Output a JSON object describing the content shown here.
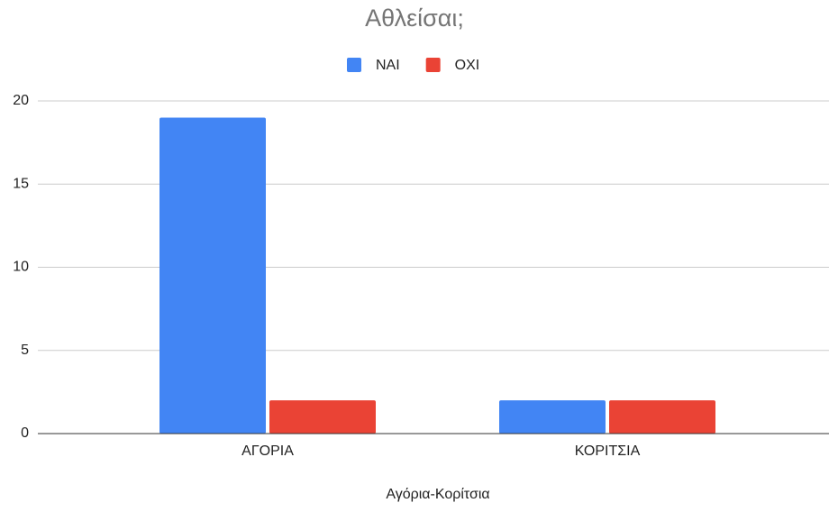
{
  "chart_data": {
    "type": "bar",
    "title": "Αθλείσαι;",
    "x_label": "Αγόρια-Κορίτσια",
    "categories": [
      "ΑΓΟΡΙΑ",
      "ΚΟΡΙΤΣΙΑ"
    ],
    "series": [
      {
        "name": "ΝΑΙ",
        "color": "#4285f4",
        "values": [
          19,
          2
        ]
      },
      {
        "name": "ΟΧΙ",
        "color": "#ea4335",
        "values": [
          2,
          2
        ]
      }
    ],
    "ylim": [
      0,
      20
    ],
    "yticks": [
      0,
      5,
      10,
      15,
      20
    ],
    "grid": true,
    "legend": "top"
  }
}
